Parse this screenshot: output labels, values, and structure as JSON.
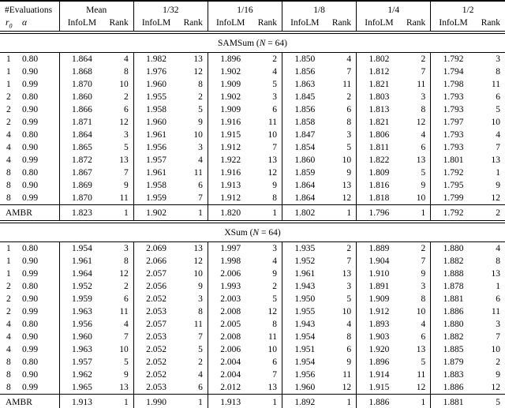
{
  "page": {
    "background_color": "#ffffff",
    "text_color": "#000000",
    "rule_color": "#000000"
  },
  "table": {
    "header": {
      "eval_group_label": "#Evaluations",
      "col_groups": [
        {
          "label": "Mean"
        },
        {
          "label": "1/32"
        },
        {
          "label": "1/16"
        },
        {
          "label": "1/8"
        },
        {
          "label": "1/4"
        },
        {
          "label": "1/2"
        }
      ],
      "sub_r0_base": "r",
      "sub_r0_sub": "0",
      "sub_alpha": "α",
      "sub_metric": "InfoLM",
      "sub_rank": "Rank"
    },
    "sections": [
      {
        "title_prefix": "SAMSum (",
        "title_var": "N",
        "title_suffix": " = 64)",
        "rows": [
          {
            "r0": "1",
            "alpha": "0.80",
            "values": [
              [
                "1.864",
                "4"
              ],
              [
                "1.982",
                "13"
              ],
              [
                "1.896",
                "2"
              ],
              [
                "1.850",
                "4"
              ],
              [
                "1.802",
                "2"
              ],
              [
                "1.792",
                "3"
              ]
            ]
          },
          {
            "r0": "1",
            "alpha": "0.90",
            "values": [
              [
                "1.868",
                "8"
              ],
              [
                "1.976",
                "12"
              ],
              [
                "1.902",
                "4"
              ],
              [
                "1.856",
                "7"
              ],
              [
                "1.812",
                "7"
              ],
              [
                "1.794",
                "8"
              ]
            ]
          },
          {
            "r0": "1",
            "alpha": "0.99",
            "values": [
              [
                "1.870",
                "10"
              ],
              [
                "1.960",
                "8"
              ],
              [
                "1.909",
                "5"
              ],
              [
                "1.863",
                "11"
              ],
              [
                "1.821",
                "11"
              ],
              [
                "1.798",
                "11"
              ]
            ]
          },
          {
            "r0": "2",
            "alpha": "0.80",
            "values": [
              [
                "1.860",
                "2"
              ],
              [
                "1.955",
                "2"
              ],
              [
                "1.902",
                "3"
              ],
              [
                "1.845",
                "2"
              ],
              [
                "1.803",
                "3"
              ],
              [
                "1.793",
                "6"
              ]
            ]
          },
          {
            "r0": "2",
            "alpha": "0.90",
            "values": [
              [
                "1.866",
                "6"
              ],
              [
                "1.958",
                "5"
              ],
              [
                "1.909",
                "6"
              ],
              [
                "1.856",
                "6"
              ],
              [
                "1.813",
                "8"
              ],
              [
                "1.793",
                "5"
              ]
            ]
          },
          {
            "r0": "2",
            "alpha": "0.99",
            "values": [
              [
                "1.871",
                "12"
              ],
              [
                "1.960",
                "9"
              ],
              [
                "1.916",
                "11"
              ],
              [
                "1.858",
                "8"
              ],
              [
                "1.821",
                "12"
              ],
              [
                "1.797",
                "10"
              ]
            ]
          },
          {
            "r0": "4",
            "alpha": "0.80",
            "values": [
              [
                "1.864",
                "3"
              ],
              [
                "1.961",
                "10"
              ],
              [
                "1.915",
                "10"
              ],
              [
                "1.847",
                "3"
              ],
              [
                "1.806",
                "4"
              ],
              [
                "1.793",
                "4"
              ]
            ]
          },
          {
            "r0": "4",
            "alpha": "0.90",
            "values": [
              [
                "1.865",
                "5"
              ],
              [
                "1.956",
                "3"
              ],
              [
                "1.912",
                "7"
              ],
              [
                "1.854",
                "5"
              ],
              [
                "1.811",
                "6"
              ],
              [
                "1.793",
                "7"
              ]
            ]
          },
          {
            "r0": "4",
            "alpha": "0.99",
            "values": [
              [
                "1.872",
                "13"
              ],
              [
                "1.957",
                "4"
              ],
              [
                "1.922",
                "13"
              ],
              [
                "1.860",
                "10"
              ],
              [
                "1.822",
                "13"
              ],
              [
                "1.801",
                "13"
              ]
            ]
          },
          {
            "r0": "8",
            "alpha": "0.80",
            "values": [
              [
                "1.867",
                "7"
              ],
              [
                "1.961",
                "11"
              ],
              [
                "1.916",
                "12"
              ],
              [
                "1.859",
                "9"
              ],
              [
                "1.809",
                "5"
              ],
              [
                "1.792",
                "1"
              ]
            ]
          },
          {
            "r0": "8",
            "alpha": "0.90",
            "values": [
              [
                "1.869",
                "9"
              ],
              [
                "1.958",
                "6"
              ],
              [
                "1.913",
                "9"
              ],
              [
                "1.864",
                "13"
              ],
              [
                "1.816",
                "9"
              ],
              [
                "1.795",
                "9"
              ]
            ]
          },
          {
            "r0": "8",
            "alpha": "0.99",
            "values": [
              [
                "1.870",
                "11"
              ],
              [
                "1.959",
                "7"
              ],
              [
                "1.912",
                "8"
              ],
              [
                "1.864",
                "12"
              ],
              [
                "1.818",
                "10"
              ],
              [
                "1.799",
                "12"
              ]
            ]
          }
        ],
        "ambr": {
          "label": "AMBR",
          "values": [
            [
              "1.823",
              "1"
            ],
            [
              "1.902",
              "1"
            ],
            [
              "1.820",
              "1"
            ],
            [
              "1.802",
              "1"
            ],
            [
              "1.796",
              "1"
            ],
            [
              "1.792",
              "2"
            ]
          ]
        }
      },
      {
        "title_prefix": "XSum (",
        "title_var": "N",
        "title_suffix": " = 64)",
        "rows": [
          {
            "r0": "1",
            "alpha": "0.80",
            "values": [
              [
                "1.954",
                "3"
              ],
              [
                "2.069",
                "13"
              ],
              [
                "1.997",
                "3"
              ],
              [
                "1.935",
                "2"
              ],
              [
                "1.889",
                "2"
              ],
              [
                "1.880",
                "4"
              ]
            ]
          },
          {
            "r0": "1",
            "alpha": "0.90",
            "values": [
              [
                "1.961",
                "8"
              ],
              [
                "2.066",
                "12"
              ],
              [
                "1.998",
                "4"
              ],
              [
                "1.952",
                "7"
              ],
              [
                "1.904",
                "7"
              ],
              [
                "1.882",
                "8"
              ]
            ]
          },
          {
            "r0": "1",
            "alpha": "0.99",
            "values": [
              [
                "1.964",
                "12"
              ],
              [
                "2.057",
                "10"
              ],
              [
                "2.006",
                "9"
              ],
              [
                "1.961",
                "13"
              ],
              [
                "1.910",
                "9"
              ],
              [
                "1.888",
                "13"
              ]
            ]
          },
          {
            "r0": "2",
            "alpha": "0.80",
            "values": [
              [
                "1.952",
                "2"
              ],
              [
                "2.056",
                "9"
              ],
              [
                "1.993",
                "2"
              ],
              [
                "1.943",
                "3"
              ],
              [
                "1.891",
                "3"
              ],
              [
                "1.878",
                "1"
              ]
            ]
          },
          {
            "r0": "2",
            "alpha": "0.90",
            "values": [
              [
                "1.959",
                "6"
              ],
              [
                "2.052",
                "3"
              ],
              [
                "2.003",
                "5"
              ],
              [
                "1.950",
                "5"
              ],
              [
                "1.909",
                "8"
              ],
              [
                "1.881",
                "6"
              ]
            ]
          },
          {
            "r0": "2",
            "alpha": "0.99",
            "values": [
              [
                "1.963",
                "11"
              ],
              [
                "2.053",
                "8"
              ],
              [
                "2.008",
                "12"
              ],
              [
                "1.955",
                "10"
              ],
              [
                "1.912",
                "10"
              ],
              [
                "1.886",
                "11"
              ]
            ]
          },
          {
            "r0": "4",
            "alpha": "0.80",
            "values": [
              [
                "1.956",
                "4"
              ],
              [
                "2.057",
                "11"
              ],
              [
                "2.005",
                "8"
              ],
              [
                "1.943",
                "4"
              ],
              [
                "1.893",
                "4"
              ],
              [
                "1.880",
                "3"
              ]
            ]
          },
          {
            "r0": "4",
            "alpha": "0.90",
            "values": [
              [
                "1.960",
                "7"
              ],
              [
                "2.053",
                "7"
              ],
              [
                "2.008",
                "11"
              ],
              [
                "1.954",
                "8"
              ],
              [
                "1.903",
                "6"
              ],
              [
                "1.882",
                "7"
              ]
            ]
          },
          {
            "r0": "4",
            "alpha": "0.99",
            "values": [
              [
                "1.963",
                "10"
              ],
              [
                "2.052",
                "5"
              ],
              [
                "2.006",
                "10"
              ],
              [
                "1.951",
                "6"
              ],
              [
                "1.920",
                "13"
              ],
              [
                "1.885",
                "10"
              ]
            ]
          },
          {
            "r0": "8",
            "alpha": "0.80",
            "values": [
              [
                "1.957",
                "5"
              ],
              [
                "2.052",
                "2"
              ],
              [
                "2.004",
                "6"
              ],
              [
                "1.954",
                "9"
              ],
              [
                "1.896",
                "5"
              ],
              [
                "1.879",
                "2"
              ]
            ]
          },
          {
            "r0": "8",
            "alpha": "0.90",
            "values": [
              [
                "1.962",
                "9"
              ],
              [
                "2.052",
                "4"
              ],
              [
                "2.004",
                "7"
              ],
              [
                "1.956",
                "11"
              ],
              [
                "1.914",
                "11"
              ],
              [
                "1.883",
                "9"
              ]
            ]
          },
          {
            "r0": "8",
            "alpha": "0.99",
            "values": [
              [
                "1.965",
                "13"
              ],
              [
                "2.053",
                "6"
              ],
              [
                "2.012",
                "13"
              ],
              [
                "1.960",
                "12"
              ],
              [
                "1.915",
                "12"
              ],
              [
                "1.886",
                "12"
              ]
            ]
          }
        ],
        "ambr": {
          "label": "AMBR",
          "values": [
            [
              "1.913",
              "1"
            ],
            [
              "1.990",
              "1"
            ],
            [
              "1.913",
              "1"
            ],
            [
              "1.892",
              "1"
            ],
            [
              "1.886",
              "1"
            ],
            [
              "1.881",
              "5"
            ]
          ]
        }
      }
    ]
  }
}
